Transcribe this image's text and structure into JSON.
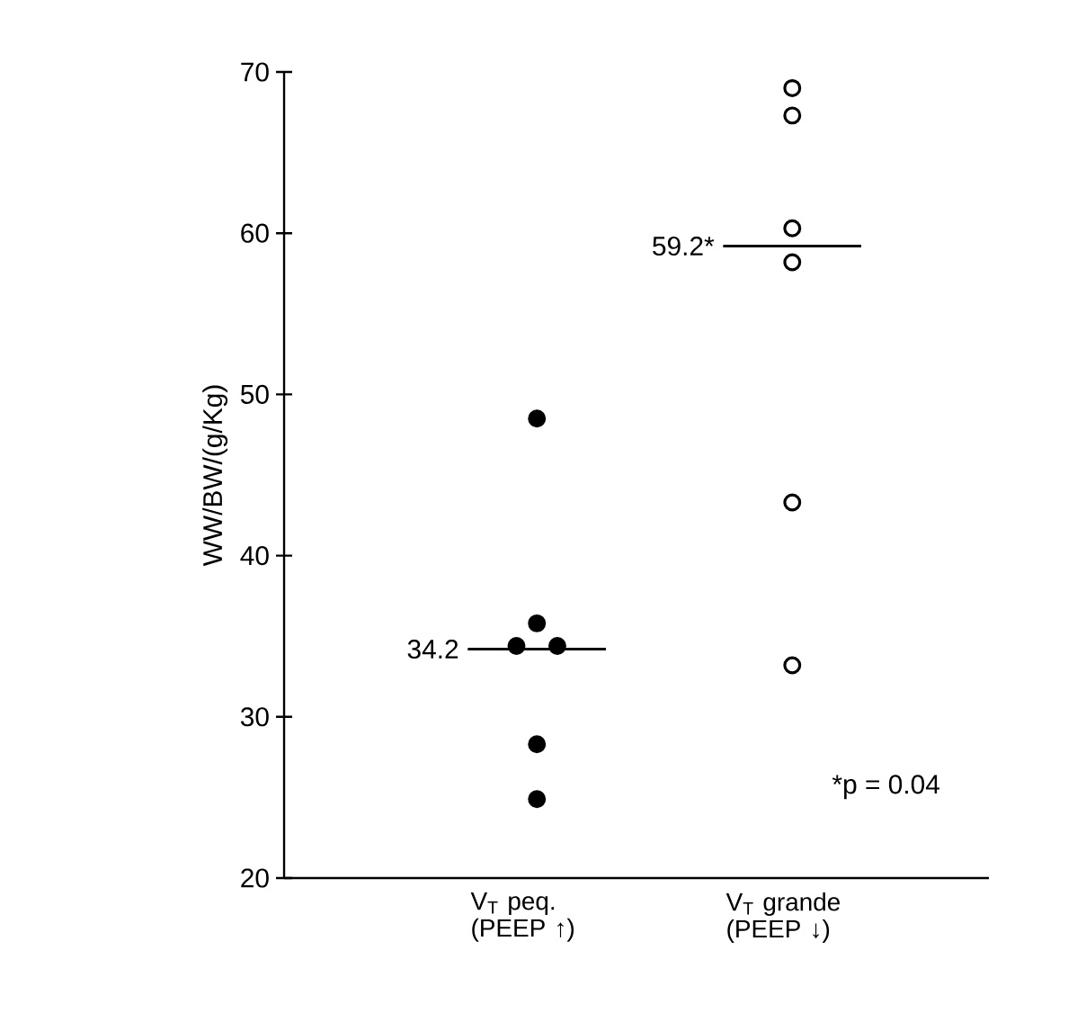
{
  "chart_data": {
    "type": "scatter",
    "ylabel": "WW/BW/(g/Kg)",
    "categories": [
      "V$_{T}$ peq. (PEEP ↑)",
      "V$_{T}$ grande (PEEP ↓)"
    ],
    "ylim": [
      20,
      70
    ],
    "yticks": [
      20,
      30,
      40,
      50,
      60,
      70
    ],
    "marker": "circle",
    "series": [
      {
        "color": "#000000",
        "x": [
          "V$_{T}$ peq. (PEEP ↑)",
          "V$_{T}$ peq. (PEEP ↑)",
          "V$_{T}$ peq. (PEEP ↑)",
          "V$_{T}$ peq. (PEEP ↑)",
          "V$_{T}$ peq. (PEEP ↑)",
          "V$_{T}$ peq. (PEEP ↑)"
        ],
        "values": [
          48.5,
          35.8,
          34.4,
          34.4,
          28.3,
          24.9
        ]
      },
      {
        "color": "#ffffff",
        "x": [
          "V$_{T}$ grande (PEEP ↓)",
          "V$_{T}$ grande (PEEP ↓)",
          "V$_{T}$ grande (PEEP ↓)",
          "V$_{T}$ grande (PEEP ↓)",
          "V$_{T}$ grande (PEEP ↓)",
          "V$_{T}$ grande (PEEP ↓)"
        ],
        "values": [
          69.0,
          67.3,
          60.3,
          58.2,
          43.3,
          33.2
        ]
      },
      {
        "type": "box",
        "color": "#000000",
        "boxes": [
          {
            "low": 34.2,
            "q1": 34.2,
            "median": 34.2,
            "q3": 34.2,
            "high": 34.2
          },
          {
            "low": 59.2,
            "q1": 59.2,
            "median": 59.2,
            "q3": 59.2,
            "high": 59.2
          }
        ]
      }
    ],
    "annotations": [
      {
        "text": "34.2",
        "x": "V$_{T}$ peq. (PEEP ↑)",
        "y": 34.2
      },
      {
        "text": "59.2*",
        "x": "V$_{T}$ grande (PEEP ↓)",
        "y": 59.2
      },
      "*p = 0.04"
    ]
  }
}
